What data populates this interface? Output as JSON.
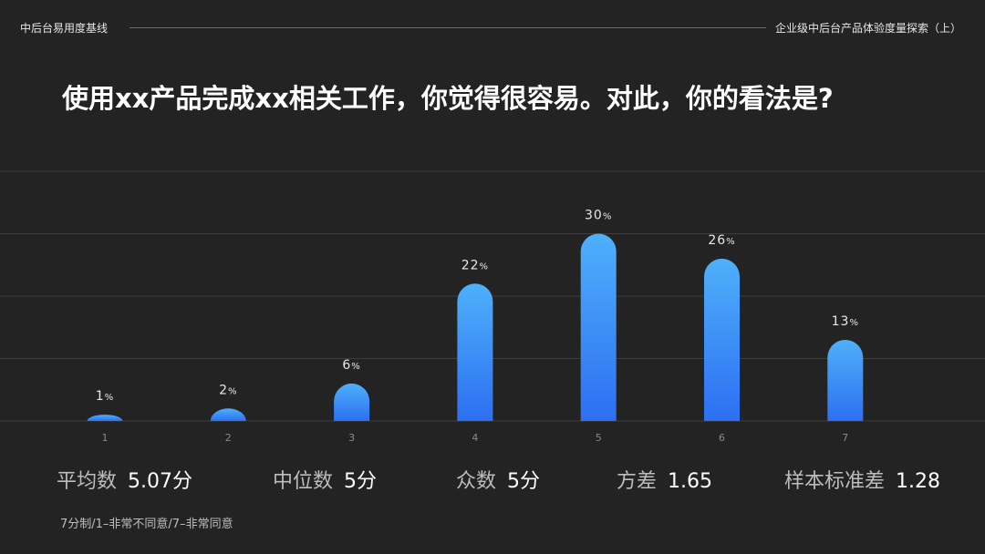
{
  "header": {
    "left_title": "中后台易用度基线",
    "right_title": "企业级中后台产品体验度量探索（上）"
  },
  "question": "使用xx产品完成xx相关工作，你觉得很容易。对此，你的看法是?",
  "chart_data": {
    "type": "bar",
    "title": "",
    "xlabel": "",
    "ylabel": "",
    "categories": [
      "1",
      "2",
      "3",
      "4",
      "5",
      "6",
      "7"
    ],
    "values": [
      1,
      2,
      6,
      22,
      30,
      26,
      13
    ],
    "value_suffix": "%",
    "ylim": [
      0,
      40
    ],
    "grid": true,
    "bar_gradient": [
      "#4eb0fa",
      "#2d6ff2"
    ]
  },
  "stats": {
    "mean": {
      "label": "平均数",
      "value": "5.07分"
    },
    "median": {
      "label": "中位数",
      "value": "5分"
    },
    "mode": {
      "label": "众数",
      "value": "5分"
    },
    "variance": {
      "label": "方差",
      "value": "1.65"
    },
    "stddev": {
      "label": "样本标准差",
      "value": "1.28"
    }
  },
  "footnote": "7分制/1–非常不同意/7–非常同意"
}
